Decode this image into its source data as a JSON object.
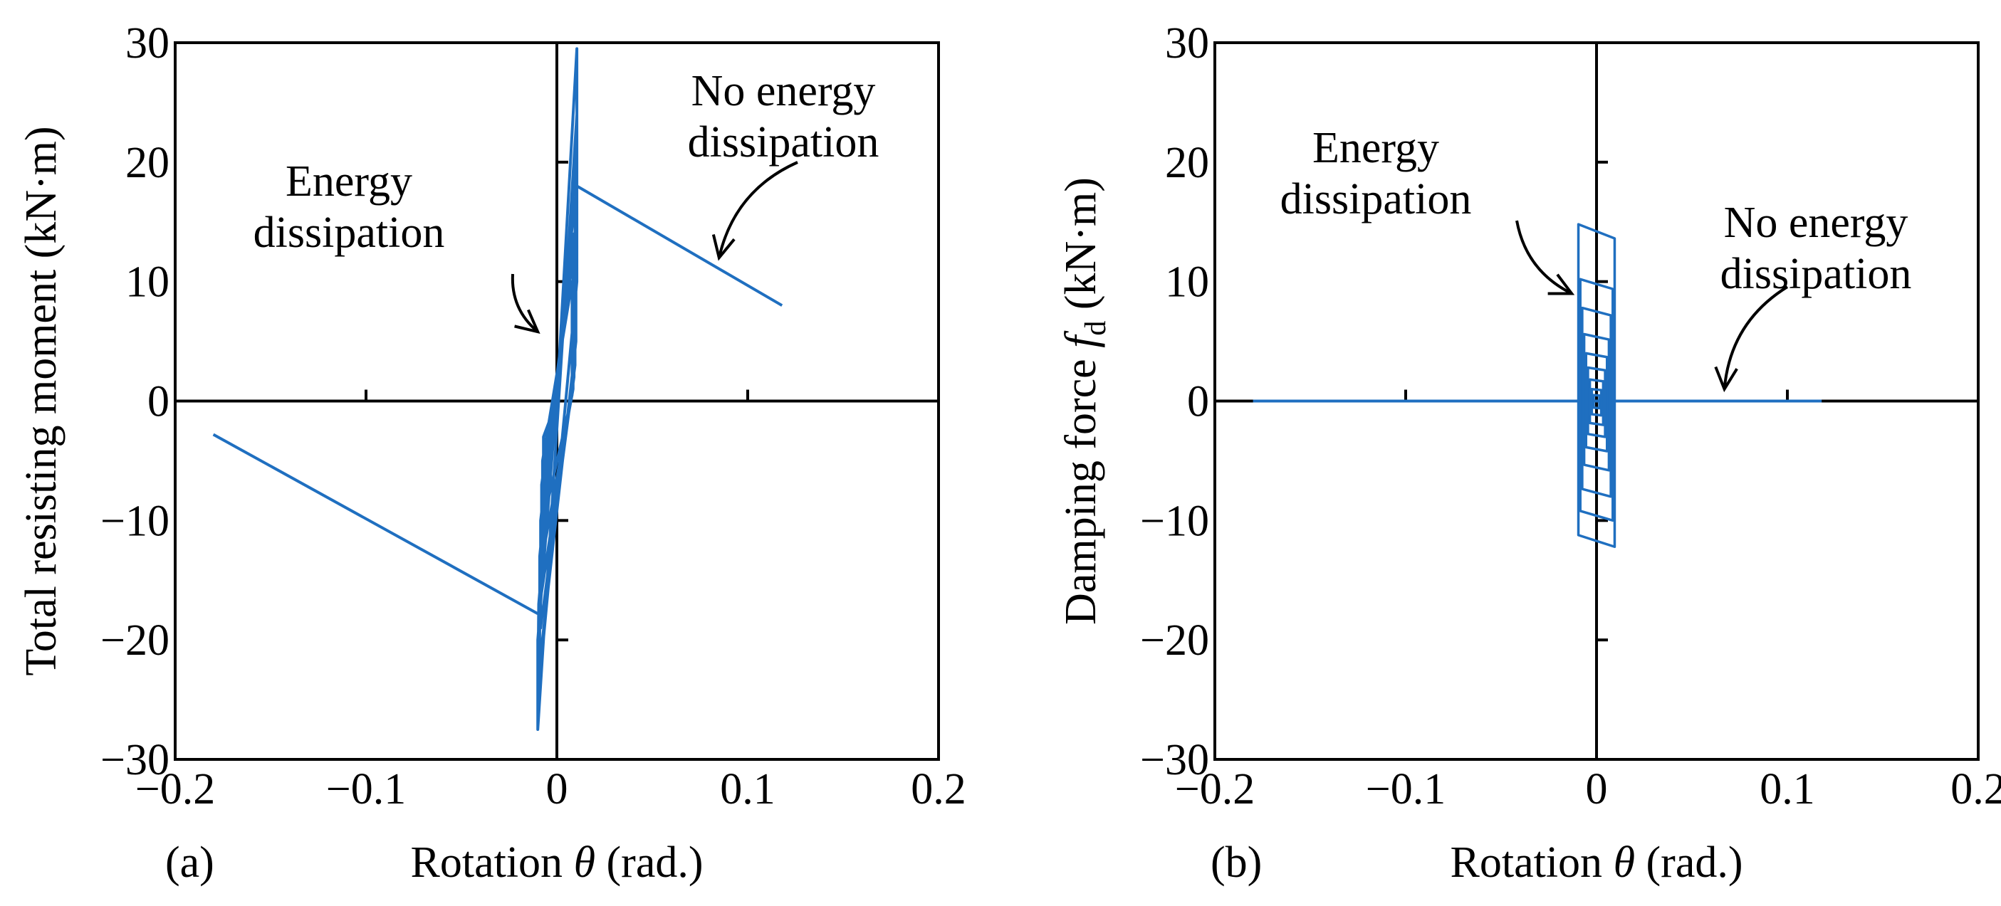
{
  "figure": {
    "domain": "Chart",
    "panel_count": 2
  },
  "chart_data": [
    {
      "type": "line",
      "panel_label": "(a)",
      "xlabel": "Rotation θ (rad.)",
      "xlabel_main": "Rotation ",
      "xlabel_symbol": "θ",
      "xlabel_unit": " (rad.)",
      "ylabel": "Total resisting moment (kN·m)",
      "xlim": [
        -0.2,
        0.2
      ],
      "ylim": [
        -30,
        30
      ],
      "xticks": [
        -0.2,
        -0.1,
        0,
        0.1,
        0.2
      ],
      "xtick_labels": [
        "−0.2",
        "−0.1",
        "0",
        "0.1",
        "0.2"
      ],
      "yticks": [
        -30,
        -20,
        -10,
        0,
        10,
        20,
        30
      ],
      "ytick_labels": [
        "−30",
        "−20",
        "−10",
        "0",
        "10",
        "20",
        "30"
      ],
      "grid": false,
      "line_color": "#1f6fc0",
      "series": [
        {
          "name": "Energy dissipation (hysteresis loops)",
          "x": [
            0,
            0.0105,
            0.0105,
            -0.01,
            -0.01,
            0.0105,
            0.0105,
            -0.01,
            -0.0095,
            0.01,
            0.01,
            -0.009,
            -0.009,
            0.0095,
            0.0095,
            -0.0085,
            -0.0085,
            0.009,
            0.009,
            -0.008,
            -0.008,
            0.0085,
            0.0085,
            -0.0075,
            -0.0075,
            0.008,
            0.008,
            -0.007,
            -0.007,
            0
          ],
          "y": [
            0,
            29.5,
            22,
            -20,
            -27.5,
            24,
            10,
            -25,
            -17,
            20,
            5,
            -22,
            -13,
            17,
            3,
            -19,
            -10,
            14,
            2,
            -16,
            -7,
            12,
            1,
            -13,
            -5,
            10,
            0.5,
            -10,
            -3,
            0
          ]
        },
        {
          "name": "No energy dissipation (positive branch)",
          "x": [
            0.0105,
            0.118
          ],
          "y": [
            18,
            8
          ]
        },
        {
          "name": "No energy dissipation (negative branch)",
          "x": [
            -0.01,
            -0.18
          ],
          "y": [
            -17.8,
            -2.8
          ]
        }
      ],
      "annotations": [
        {
          "line1": "No energy",
          "line2": "dissipation",
          "arrow_to": [
            0.085,
            12
          ]
        },
        {
          "line1": "Energy",
          "line2": "dissipation",
          "arrow_to": [
            -0.01,
            5.8
          ]
        }
      ]
    },
    {
      "type": "line",
      "panel_label": "(b)",
      "xlabel": "Rotation θ (rad.)",
      "xlabel_main": "Rotation ",
      "xlabel_symbol": "θ",
      "xlabel_unit": " (rad.)",
      "ylabel": "Damping force fd (kN·m)",
      "ylabel_main": "Damping force ",
      "ylabel_symbol": "f",
      "ylabel_sub": "d",
      "ylabel_unit": " (kN·m)",
      "xlim": [
        -0.2,
        0.2
      ],
      "ylim": [
        -30,
        30
      ],
      "xticks": [
        -0.2,
        -0.1,
        0,
        0.1,
        0.2
      ],
      "xtick_labels": [
        "−0.2",
        "−0.1",
        "0",
        "0.1",
        "0.2"
      ],
      "yticks": [
        -30,
        -20,
        -10,
        0,
        10,
        20,
        30
      ],
      "ytick_labels": [
        "−30",
        "−20",
        "−10",
        "0",
        "10",
        "20",
        "30"
      ],
      "grid": false,
      "line_color": "#1f6fc0",
      "series": [
        {
          "name": "No energy dissipation (zero damping force)",
          "x": [
            -0.18,
            0.118
          ],
          "y": [
            0,
            0
          ]
        }
      ],
      "loops": [
        {
          "half_width": 0.0095,
          "top": 14.8,
          "bottom": -12.2
        },
        {
          "half_width": 0.0085,
          "top": 10.2,
          "bottom": -10.0
        },
        {
          "half_width": 0.0075,
          "top": 7.8,
          "bottom": -8.0
        },
        {
          "half_width": 0.0065,
          "top": 5.6,
          "bottom": -5.8
        },
        {
          "half_width": 0.0055,
          "top": 4.0,
          "bottom": -4.2
        },
        {
          "half_width": 0.0045,
          "top": 2.8,
          "bottom": -3.0
        },
        {
          "half_width": 0.0035,
          "top": 1.8,
          "bottom": -2.0
        },
        {
          "half_width": 0.0025,
          "top": 1.0,
          "bottom": -1.2
        },
        {
          "half_width": 0.0015,
          "top": 0.5,
          "bottom": -0.6
        }
      ],
      "annotations": [
        {
          "line1": "No energy",
          "line2": "dissipation",
          "arrow_to": [
            0.067,
            1.0
          ]
        },
        {
          "line1": "Energy",
          "line2": "dissipation",
          "arrow_to": [
            -0.013,
            9.0
          ]
        }
      ]
    }
  ]
}
